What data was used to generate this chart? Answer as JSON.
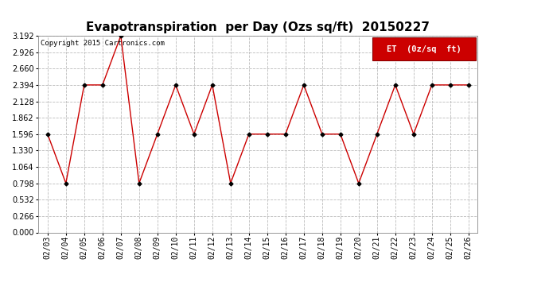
{
  "title": "Evapotranspiration  per Day (Ozs sq/ft)  20150227",
  "copyright": "Copyright 2015 Cartronics.com",
  "legend_label": "ET  (0z/sq  ft)",
  "dates": [
    "02/03",
    "02/04",
    "02/05",
    "02/06",
    "02/07",
    "02/08",
    "02/09",
    "02/10",
    "02/11",
    "02/12",
    "02/13",
    "02/14",
    "02/15",
    "02/16",
    "02/17",
    "02/18",
    "02/19",
    "02/20",
    "02/21",
    "02/22",
    "02/23",
    "02/24",
    "02/25",
    "02/26"
  ],
  "values": [
    1.596,
    0.798,
    2.394,
    2.394,
    3.192,
    0.798,
    1.596,
    2.394,
    1.596,
    2.394,
    0.798,
    1.596,
    1.596,
    1.596,
    2.394,
    1.596,
    1.596,
    0.798,
    1.596,
    2.394,
    1.596,
    2.394,
    2.394,
    2.394
  ],
  "line_color": "#cc0000",
  "marker_color": "#000000",
  "bg_color": "#ffffff",
  "grid_color": "#bbbbbb",
  "ylim": [
    0.0,
    3.192
  ],
  "yticks": [
    0.0,
    0.266,
    0.532,
    0.798,
    1.064,
    1.33,
    1.596,
    1.862,
    2.128,
    2.394,
    2.66,
    2.926,
    3.192
  ],
  "title_fontsize": 11,
  "copyright_fontsize": 6.5,
  "legend_fontsize": 7.5,
  "tick_fontsize": 7,
  "ytick_fontsize": 7
}
